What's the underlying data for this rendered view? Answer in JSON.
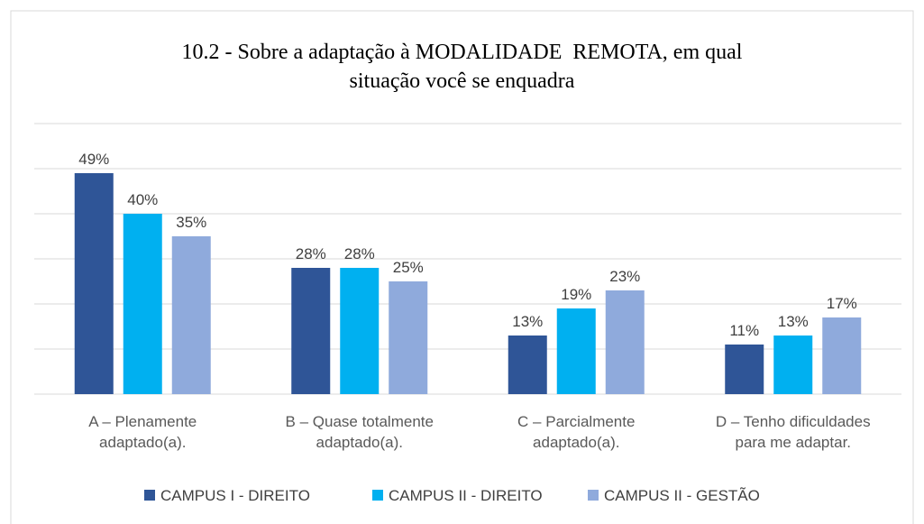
{
  "chart_data": {
    "type": "bar",
    "title": "10.2 - Sobre a adaptação à MODALIDADE  REMOTA, em qual\nsituação você se enquadra",
    "categories": [
      "A – Plenamente\nadaptado(a).",
      "B – Quase totalmente\nadaptado(a).",
      "C – Parcialmente\nadaptado(a).",
      "D – Tenho dificuldades\npara me adaptar."
    ],
    "series": [
      {
        "name": "CAMPUS I - DIREITO",
        "color": "#2F5597",
        "values": [
          49,
          28,
          13,
          11
        ],
        "value_labels": [
          "49%",
          "28%",
          "13%",
          "11%"
        ]
      },
      {
        "name": "CAMPUS II - DIREITO",
        "color": "#00B0F0",
        "values": [
          40,
          28,
          19,
          13
        ],
        "value_labels": [
          "40%",
          "28%",
          "19%",
          "13%"
        ]
      },
      {
        "name": "CAMPUS II - GESTÃO",
        "color": "#8FAADC",
        "values": [
          35,
          25,
          23,
          17
        ],
        "value_labels": [
          "35%",
          "25%",
          "23%",
          "17%"
        ]
      }
    ],
    "ylim": [
      0,
      60
    ],
    "yticks": [
      0,
      10,
      20,
      30,
      40,
      50,
      60
    ],
    "grid": true,
    "legend": "bottom"
  }
}
